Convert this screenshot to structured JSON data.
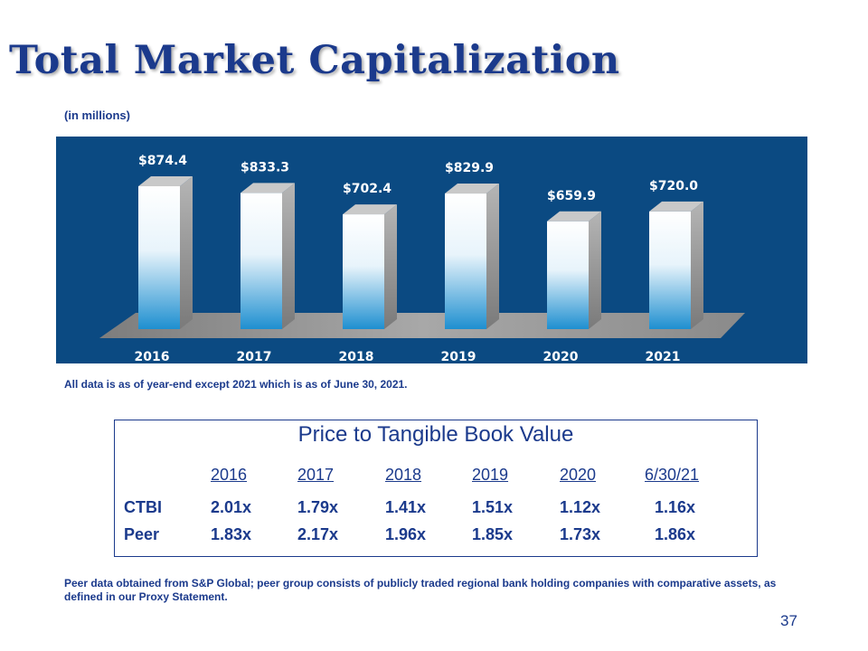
{
  "title": "Total Market Capitalization",
  "units_note": "(in millions)",
  "footnote": "All data is as of year-end except 2021 which is as of June 30, 2021.",
  "chart_data": {
    "type": "bar",
    "title": "",
    "xlabel": "",
    "ylabel": "",
    "categories": [
      "2016",
      "2017",
      "2018",
      "2019",
      "2020",
      "2021"
    ],
    "values": [
      874.4,
      833.3,
      702.4,
      829.9,
      659.9,
      720.0
    ],
    "data_labels": [
      "$874.4",
      "$833.3",
      "$702.4",
      "$829.9",
      "$659.9",
      "$720.0"
    ],
    "ylim": [
      0,
      874.4
    ],
    "grid": false,
    "legend": "none",
    "colors": {
      "panel": "#0b4a82",
      "bar_top": "#ffffff",
      "bar_bottom": "#1e8fd0",
      "floor": "#9a9a9a"
    }
  },
  "ptbv": {
    "title": "Price to Tangible Book Value",
    "columns": [
      "2016",
      "2017",
      "2018",
      "2019",
      "2020",
      "6/30/21"
    ],
    "rows": [
      {
        "label": "CTBI",
        "values": [
          "2.01x",
          "1.79x",
          "1.41x",
          "1.51x",
          "1.12x",
          "1.16x"
        ]
      },
      {
        "label": "Peer",
        "values": [
          "1.83x",
          "2.17x",
          "1.96x",
          "1.85x",
          "1.73x",
          "1.86x"
        ]
      }
    ]
  },
  "source_note": "Peer data obtained from S&P Global; peer group consists of publicly traded regional bank holding companies with comparative assets, as defined in our Proxy Statement.",
  "page_number": "37",
  "colors": {
    "text": "#1b3a8c"
  }
}
